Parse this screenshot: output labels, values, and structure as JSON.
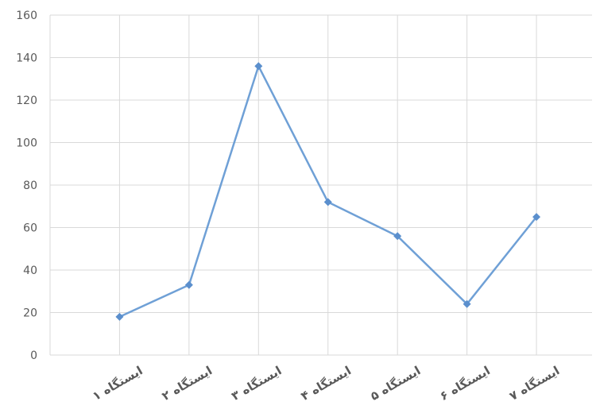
{
  "chart_data": {
    "type": "line",
    "categories": [
      "ایستگاه ۱",
      "ایستگاه ۲",
      "ایستگاه ۳",
      "ایستگاه ۴",
      "ایستگاه ۵",
      "ایستگاه ۶",
      "ایستگاه ۷"
    ],
    "series": [
      {
        "values": [
          18,
          33,
          136,
          72,
          56,
          24,
          65
        ]
      }
    ],
    "ylim": [
      0,
      160
    ],
    "yticks": [
      0,
      20,
      40,
      60,
      80,
      100,
      120,
      140,
      160
    ],
    "ytick_labels": [
      "0",
      "20",
      "40",
      "60",
      "80",
      "100",
      "120",
      "140",
      "160"
    ],
    "grid": true,
    "legend": "none",
    "title": "",
    "xlabel": "",
    "ylabel": "",
    "colors": {
      "line": "#6fa0d6",
      "marker": "#5b8fcd",
      "grid": "#d9d9d9",
      "tick_text": "#595959"
    }
  }
}
